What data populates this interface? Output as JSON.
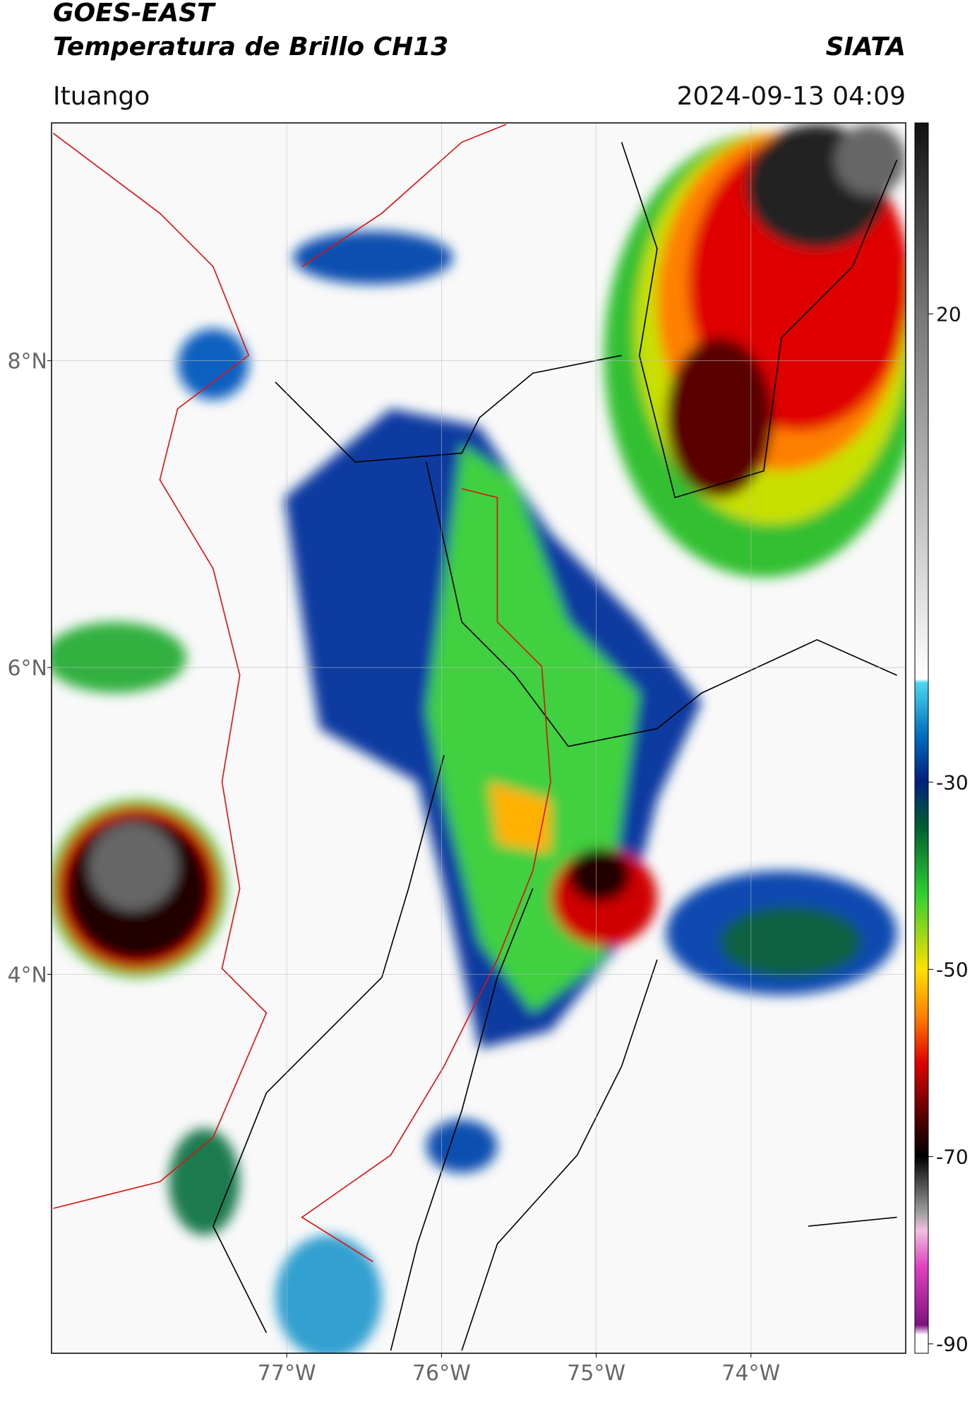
{
  "header": {
    "title": "GOES-EAST",
    "subtitle": "Temperatura de Brillo CH13",
    "credit": "SIATA",
    "location": "Ituango",
    "datetime": "2024-09-13 04:09"
  },
  "map": {
    "xlim": [
      -78.52,
      -73.0
    ],
    "ylim": [
      1.53,
      9.55
    ],
    "xticks": [
      {
        "value": -77,
        "label": "77°W"
      },
      {
        "value": -76,
        "label": "76°W"
      },
      {
        "value": -75,
        "label": "75°W"
      },
      {
        "value": -74,
        "label": "74°W"
      }
    ],
    "yticks": [
      {
        "value": 8,
        "label": "8°N"
      },
      {
        "value": 6,
        "label": "6°N"
      },
      {
        "value": 4,
        "label": "4°N"
      }
    ],
    "grid": true
  },
  "colorbar": {
    "clim": [
      -91,
      40.4
    ],
    "ticks": [
      20,
      -30,
      -50,
      -70,
      -90
    ]
  }
}
